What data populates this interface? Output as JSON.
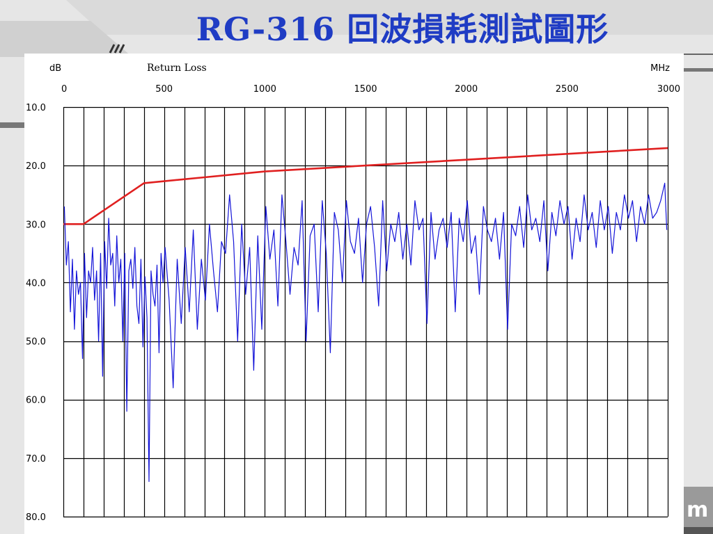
{
  "slide": {
    "title": "RG-316 回波損耗測試圖形",
    "corner_text": "m",
    "title_color": "#1f3cc4"
  },
  "chart_data": {
    "type": "line",
    "title": "Return Loss",
    "ylabel": "dB",
    "xlabel": "MHz",
    "xlim": [
      0,
      3000
    ],
    "ylim": [
      10,
      80
    ],
    "y_inverted": true,
    "x_ticks": [
      0,
      500,
      1000,
      1500,
      2000,
      2500,
      3000
    ],
    "x_tick_labels": [
      "0",
      "500",
      "1000",
      "1500",
      "2000",
      "2500",
      "3000"
    ],
    "y_ticks": [
      10,
      20,
      30,
      40,
      50,
      60,
      70,
      80
    ],
    "y_tick_labels": [
      "10.0",
      "20.0",
      "30.0",
      "40.0",
      "50.0",
      "60.0",
      "70.0",
      "80.0"
    ],
    "grid": true,
    "x_grid_step": 100,
    "legend": "none",
    "series": [
      {
        "color": "#e02020",
        "x": [
          0,
          100,
          400,
          700,
          1000,
          1500,
          2000,
          2500,
          3000
        ],
        "y": [
          30,
          30,
          23,
          22,
          21,
          20,
          19,
          18,
          17
        ]
      },
      {
        "color": "#1414d8",
        "x": [
          5,
          15,
          25,
          35,
          45,
          55,
          65,
          75,
          85,
          95,
          105,
          115,
          125,
          135,
          145,
          155,
          165,
          175,
          185,
          195,
          205,
          215,
          225,
          235,
          245,
          255,
          265,
          275,
          285,
          295,
          305,
          315,
          325,
          335,
          345,
          355,
          365,
          375,
          385,
          395,
          405,
          415,
          425,
          435,
          445,
          455,
          465,
          475,
          485,
          495,
          505,
          525,
          545,
          565,
          585,
          605,
          625,
          645,
          665,
          685,
          705,
          725,
          745,
          765,
          785,
          805,
          825,
          845,
          865,
          885,
          905,
          925,
          945,
          965,
          985,
          1005,
          1025,
          1045,
          1065,
          1085,
          1105,
          1125,
          1145,
          1165,
          1185,
          1205,
          1225,
          1245,
          1265,
          1285,
          1305,
          1325,
          1345,
          1365,
          1385,
          1405,
          1425,
          1445,
          1465,
          1485,
          1505,
          1525,
          1545,
          1565,
          1585,
          1605,
          1625,
          1645,
          1665,
          1685,
          1705,
          1725,
          1745,
          1765,
          1785,
          1805,
          1825,
          1845,
          1865,
          1885,
          1905,
          1925,
          1945,
          1965,
          1985,
          2005,
          2025,
          2045,
          2065,
          2085,
          2105,
          2125,
          2145,
          2165,
          2185,
          2205,
          2225,
          2245,
          2265,
          2285,
          2305,
          2325,
          2345,
          2365,
          2385,
          2405,
          2425,
          2445,
          2465,
          2485,
          2505,
          2525,
          2545,
          2565,
          2585,
          2605,
          2625,
          2645,
          2665,
          2685,
          2705,
          2725,
          2745,
          2765,
          2785,
          2805,
          2825,
          2845,
          2865,
          2885,
          2905,
          2925,
          2945,
          2965,
          2985,
          2995
        ],
        "y": [
          27,
          37,
          33,
          45,
          36,
          48,
          38,
          42,
          40,
          53,
          35,
          46,
          38,
          40,
          34,
          43,
          38,
          50,
          35,
          56,
          33,
          41,
          29,
          37,
          35,
          44,
          32,
          40,
          36,
          50,
          35,
          62,
          38,
          36,
          41,
          34,
          44,
          47,
          36,
          51,
          39,
          46,
          74,
          38,
          42,
          44,
          37,
          52,
          35,
          40,
          34,
          43,
          58,
          36,
          47,
          34,
          45,
          31,
          48,
          36,
          43,
          30,
          38,
          45,
          33,
          35,
          25,
          33,
          50,
          30,
          42,
          34,
          55,
          32,
          48,
          27,
          36,
          31,
          44,
          25,
          33,
          42,
          34,
          37,
          26,
          50,
          32,
          30,
          45,
          26,
          35,
          52,
          28,
          31,
          40,
          26,
          33,
          35,
          29,
          40,
          30,
          27,
          34,
          44,
          26,
          38,
          30,
          33,
          28,
          36,
          30,
          37,
          26,
          31,
          29,
          47,
          28,
          36,
          31,
          29,
          34,
          28,
          45,
          29,
          33,
          26,
          35,
          32,
          42,
          27,
          31,
          33,
          29,
          36,
          28,
          48,
          30,
          32,
          27,
          34,
          25,
          31,
          29,
          33,
          26,
          38,
          28,
          32,
          26,
          30,
          27,
          36,
          29,
          33,
          25,
          31,
          28,
          34,
          26,
          31,
          27,
          35,
          28,
          31,
          25,
          29,
          26,
          33,
          27,
          30,
          25,
          29,
          28,
          26,
          23,
          31
        ]
      }
    ]
  }
}
